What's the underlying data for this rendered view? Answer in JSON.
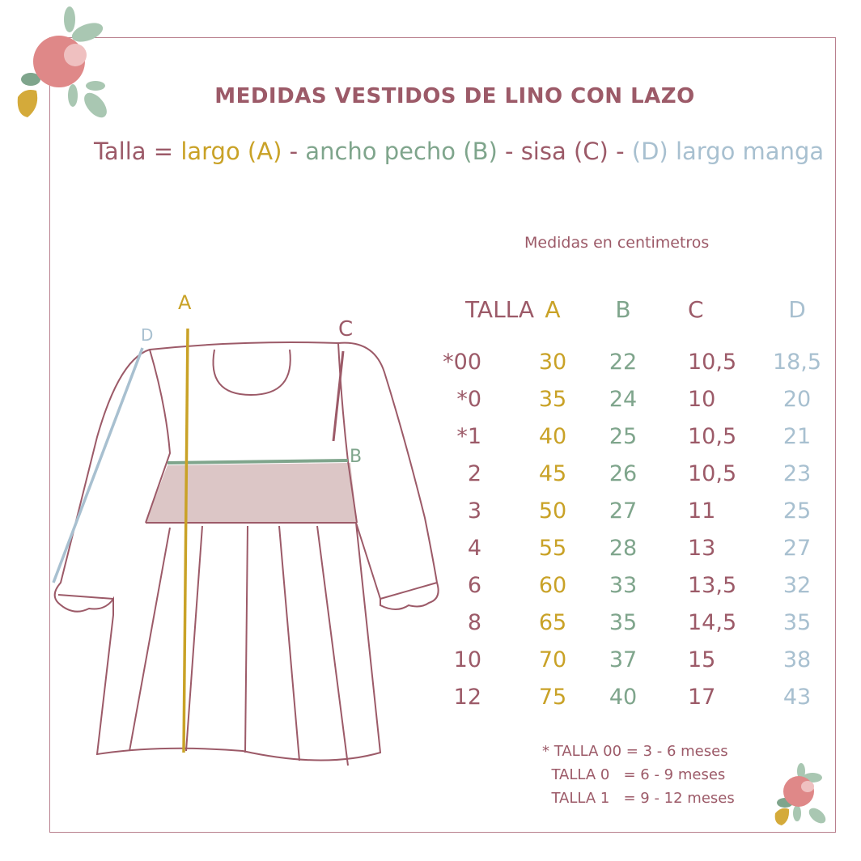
{
  "title": "MEDIDAS VESTIDOS DE LINO CON LAZO",
  "legend": {
    "talla": "Talla =",
    "a": "largo (A)",
    "sep1": " - ",
    "b": "ancho pecho (B)",
    "sep2": " - ",
    "c": "sisa (C)",
    "sep3": " - ",
    "d": "(D) largo manga"
  },
  "units_note": "Medidas en centimetros",
  "diagram_labels": {
    "a": "A",
    "b": "B",
    "c": "C",
    "d": "D"
  },
  "colors": {
    "mauve": "#9c5a68",
    "gold": "#c9a227",
    "green": "#7fa58c",
    "blue": "#a8c0d0"
  },
  "table": {
    "headers": [
      "TALLA",
      "A",
      "B",
      "C",
      "D"
    ],
    "rows": [
      [
        "*00",
        "30",
        "22",
        "10,5",
        "18,5"
      ],
      [
        "*0",
        "35",
        "24",
        "10",
        "20"
      ],
      [
        "*1",
        "40",
        "25",
        "10,5",
        "21"
      ],
      [
        "2",
        "45",
        "26",
        "10,5",
        "23"
      ],
      [
        "3",
        "50",
        "27",
        "11",
        "25"
      ],
      [
        "4",
        "55",
        "28",
        "13",
        "27"
      ],
      [
        "6",
        "60",
        "33",
        "13,5",
        "32"
      ],
      [
        "8",
        "65",
        "35",
        "14,5",
        "35"
      ],
      [
        "10",
        "70",
        "37",
        "15",
        "38"
      ],
      [
        "12",
        "75",
        "40",
        "17",
        "43"
      ]
    ]
  },
  "footnotes": [
    "* TALLA 00 = 3 - 6 meses",
    "  TALLA 0   = 6 - 9 meses",
    "  TALLA 1   = 9 - 12 meses"
  ]
}
